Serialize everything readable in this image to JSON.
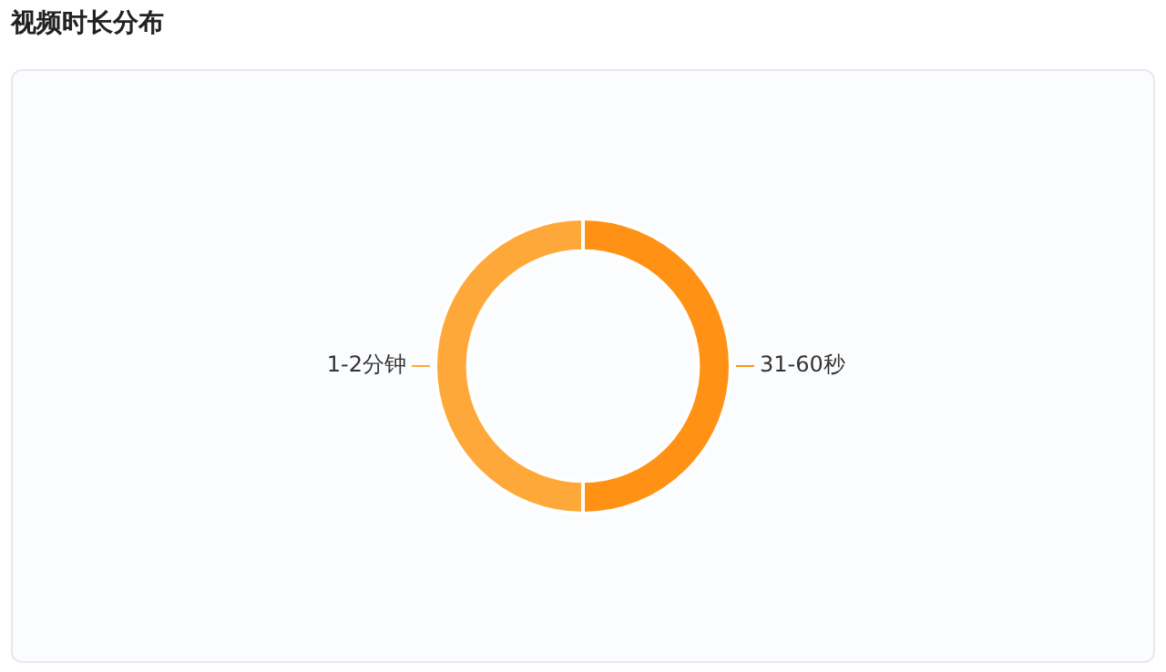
{
  "chart_data": {
    "type": "donut",
    "title": "视频时长分布",
    "categories": [
      "31-60秒",
      "1-2分钟"
    ],
    "values": [
      50,
      50
    ],
    "colors": [
      "#ff9214",
      "#ffa83a"
    ],
    "legend": false
  }
}
